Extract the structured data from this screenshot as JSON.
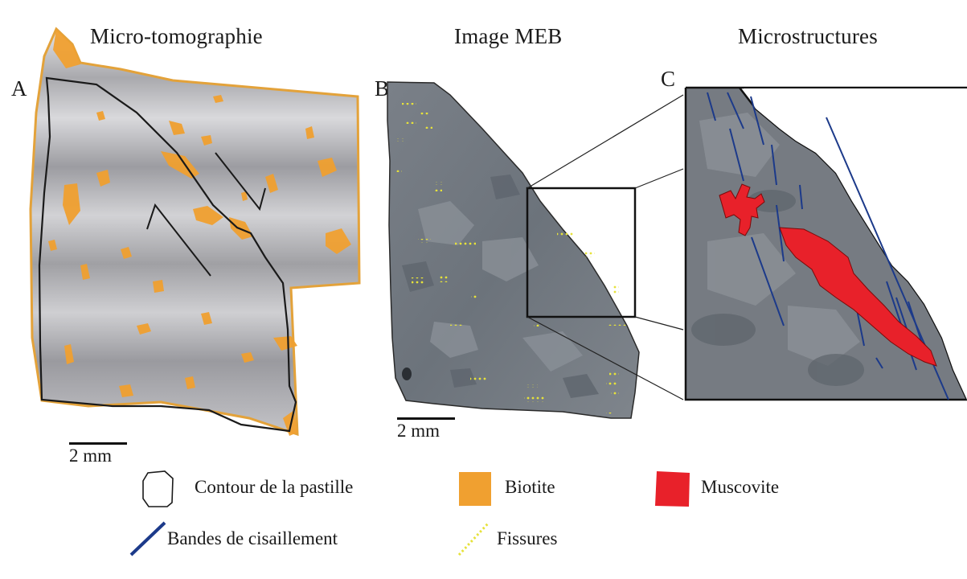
{
  "titles": {
    "a": "Micro-tomographie",
    "b": "Image MEB",
    "c": "Microstructures"
  },
  "panel_labels": {
    "a": "A",
    "b": "B",
    "c": "C"
  },
  "scale_bars": {
    "a": "2 mm",
    "b": "2 mm"
  },
  "legend": {
    "contour": "Contour de la pastille",
    "biotite": "Biotite",
    "muscovite": "Muscovite",
    "shear": "Bandes de cisaillement",
    "fissures": "Fissures"
  },
  "colors": {
    "biotite": "#f0a030",
    "muscovite": "#e8212a",
    "shear": "#1c3a8a",
    "fissures": "#e6e23a",
    "contour": "#1a1a1a"
  }
}
